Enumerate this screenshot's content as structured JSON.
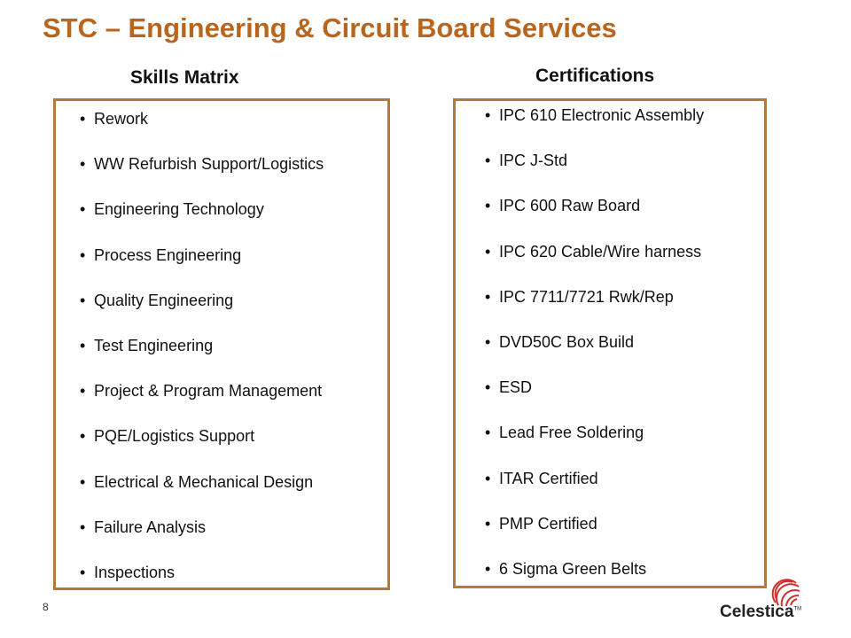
{
  "slide": {
    "title": "STC – Engineering & Circuit Board Services",
    "page_number": "8"
  },
  "skills": {
    "heading": "Skills Matrix",
    "items": [
      "Rework",
      "WW Refurbish Support/Logistics",
      "Engineering Technology",
      "Process Engineering",
      "Quality Engineering",
      "Test Engineering",
      "Project & Program Management",
      "PQE/Logistics Support",
      "Electrical & Mechanical Design",
      "Failure Analysis",
      "Inspections"
    ]
  },
  "certifications": {
    "heading": "Certifications",
    "items": [
      "IPC 610 Electronic Assembly",
      "IPC J-Std",
      "IPC 600 Raw Board",
      "IPC 620 Cable/Wire harness",
      "IPC 7711/7721 Rwk/Rep",
      "DVD50C Box Build",
      "ESD",
      "Lead Free Soldering",
      "ITAR Certified",
      "PMP Certified",
      "6 Sigma Green Belts"
    ]
  },
  "logo": {
    "text": "Celestica",
    "trademark": "TM",
    "color": "#d0312d"
  },
  "colors": {
    "title": "#b8651f",
    "box_border": "#b07a3e"
  }
}
